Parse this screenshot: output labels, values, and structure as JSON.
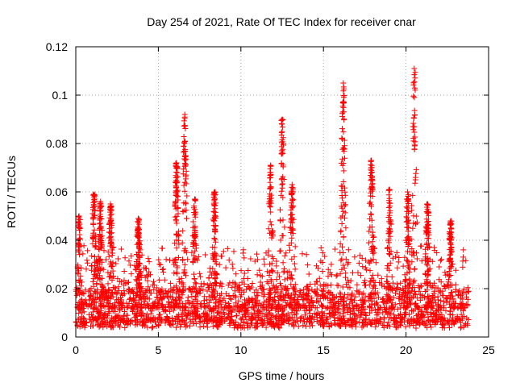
{
  "chart_data": {
    "type": "scatter",
    "title": "Day 254 of 2021, Rate Of TEC Index for receiver cnar",
    "xlabel": "GPS time / hours",
    "ylabel": "ROTI / TECUs",
    "xlim": [
      0,
      25
    ],
    "ylim": [
      0,
      0.12
    ],
    "xticks": [
      0,
      5,
      10,
      15,
      20,
      25
    ],
    "xtick_labels": [
      "0",
      "5",
      "10",
      "15",
      "20",
      "25"
    ],
    "yticks": [
      0,
      0.02,
      0.04,
      0.06,
      0.08,
      0.1,
      0.12
    ],
    "ytick_labels": [
      "0",
      "0.02",
      "0.04",
      "0.06",
      "0.08",
      "0.1",
      "0.12"
    ],
    "grid": true,
    "marker": "plus",
    "series_color": "#ff0000",
    "peaks": [
      {
        "x": 0.2,
        "y": 0.05
      },
      {
        "x": 1.1,
        "y": 0.059
      },
      {
        "x": 1.5,
        "y": 0.056
      },
      {
        "x": 2.1,
        "y": 0.055
      },
      {
        "x": 3.8,
        "y": 0.049
      },
      {
        "x": 6.1,
        "y": 0.072
      },
      {
        "x": 6.6,
        "y": 0.092
      },
      {
        "x": 7.2,
        "y": 0.057
      },
      {
        "x": 8.4,
        "y": 0.06
      },
      {
        "x": 11.8,
        "y": 0.071
      },
      {
        "x": 12.5,
        "y": 0.09
      },
      {
        "x": 13.1,
        "y": 0.063
      },
      {
        "x": 16.2,
        "y": 0.105
      },
      {
        "x": 17.9,
        "y": 0.073
      },
      {
        "x": 19.0,
        "y": 0.061
      },
      {
        "x": 20.1,
        "y": 0.06
      },
      {
        "x": 20.5,
        "y": 0.111
      },
      {
        "x": 21.3,
        "y": 0.055
      },
      {
        "x": 22.7,
        "y": 0.048
      }
    ],
    "time_span_hours": [
      0,
      23.8
    ],
    "typical_baseline": 0.01
  }
}
